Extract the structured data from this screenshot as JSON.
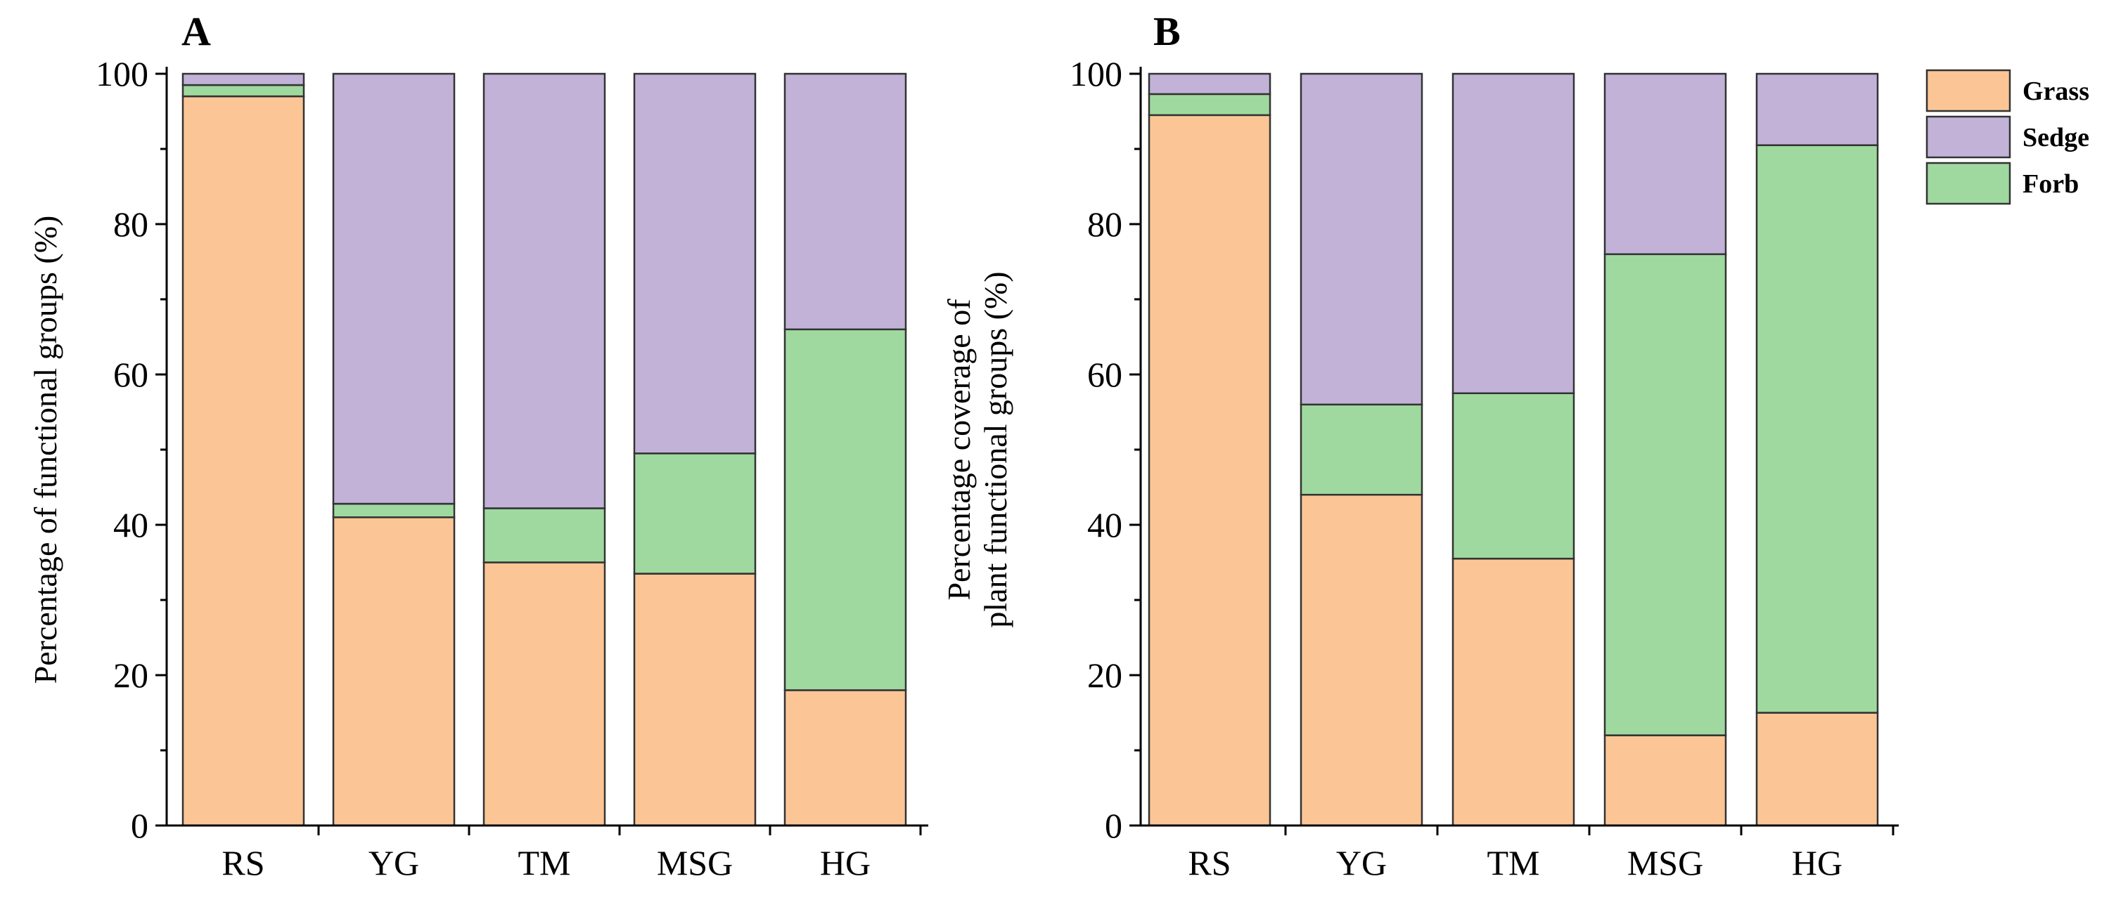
{
  "colors": {
    "grass": "#FBC596",
    "sedge": "#C2B2D8",
    "forb": "#9FD99F"
  },
  "legend": [
    "Grass",
    "Sedge",
    "Forb"
  ],
  "chart_data": [
    {
      "type": "bar",
      "stacked": true,
      "panel_label": "A",
      "title": "",
      "xlabel": "",
      "ylabel_lines": [
        "Percentage of functional groups (%)"
      ],
      "ylim": [
        0,
        100
      ],
      "yticks": [
        0,
        20,
        40,
        60,
        80,
        100
      ],
      "categories": [
        "RS",
        "YG",
        "TM",
        "MSG",
        "HG"
      ],
      "series": [
        {
          "name": "Grass",
          "values": [
            97,
            41,
            35,
            33.5,
            18
          ]
        },
        {
          "name": "Forb",
          "values": [
            1.5,
            1.8,
            7.2,
            16,
            48
          ]
        },
        {
          "name": "Sedge",
          "values": [
            1.5,
            57.2,
            57.8,
            50.5,
            34
          ]
        }
      ]
    },
    {
      "type": "bar",
      "stacked": true,
      "panel_label": "B",
      "title": "",
      "xlabel": "",
      "ylabel_lines": [
        "Percentage coverage of",
        "plant functional groups (%)"
      ],
      "ylim": [
        0,
        100
      ],
      "yticks": [
        0,
        20,
        40,
        60,
        80,
        100
      ],
      "categories": [
        "RS",
        "YG",
        "TM",
        "MSG",
        "HG"
      ],
      "series": [
        {
          "name": "Grass",
          "values": [
            94.5,
            44,
            35.5,
            12,
            15
          ]
        },
        {
          "name": "Forb",
          "values": [
            2.8,
            12,
            22,
            64,
            75.5
          ]
        },
        {
          "name": "Sedge",
          "values": [
            2.7,
            44,
            42.5,
            24,
            9.5
          ]
        }
      ],
      "legend_position": "top-right"
    }
  ]
}
